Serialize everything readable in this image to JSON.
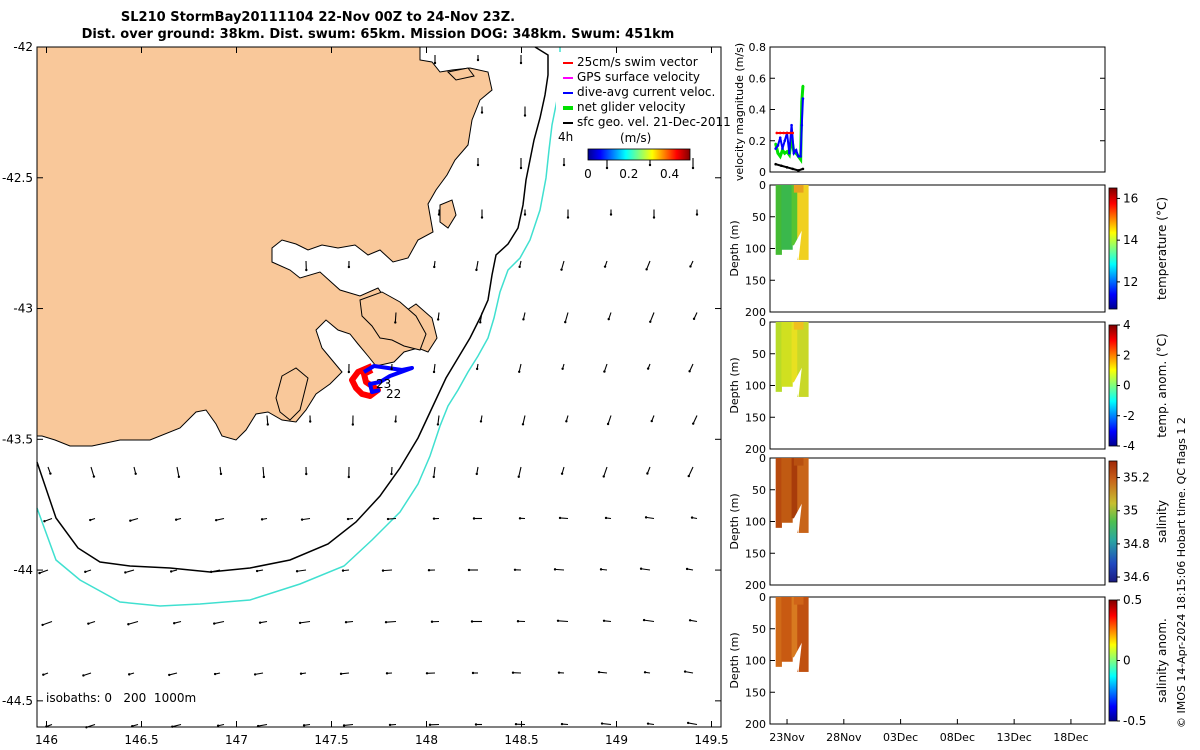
{
  "title_line1": "SL210 StormBay20111104 22-Nov 00Z to 24-Nov 23Z.",
  "title_line2": "Dist. over ground: 38km. Dist. swum: 65km. Mission DOG: 348km. Swum: 451km",
  "isobath_label": "isobaths: 0   200  1000m",
  "track_label_a": "23",
  "track_label_b": "22",
  "side_text": "© IMOS 14-Apr-2024 18:15:06 Hobart time. QC flags 1  2",
  "colors": {
    "land": "#f9c89a",
    "iso200": "#000000",
    "iso1000": "#40e0d0",
    "red": "#ff0000",
    "blue": "#0000ff",
    "magenta": "#ff00ff",
    "green": "#00e000"
  },
  "chart_data": [
    {
      "type": "map",
      "title": "SL210 StormBay20111104 22-Nov 00Z to 24-Nov 23Z.",
      "x_ticks": [
        "146",
        "146.5",
        "147",
        "147.5",
        "148",
        "148.5",
        "149",
        "149.5"
      ],
      "x_values": [
        146,
        146.5,
        147,
        147.5,
        148,
        148.5,
        149,
        149.5
      ],
      "xlim": [
        145.95,
        149.55
      ],
      "y_ticks": [
        "-42",
        "-42.5",
        "-43",
        "-43.5",
        "-44",
        "-44.5"
      ],
      "y_values": [
        -42,
        -42.5,
        -43,
        -43.5,
        -44,
        -44.5
      ],
      "ylim": [
        -44.6,
        -42
      ],
      "legend": [
        {
          "label": "25cm/s swim vector",
          "color": "#ff0000"
        },
        {
          "label": "GPS surface velocity",
          "color": "#ff00ff"
        },
        {
          "label": "dive-avg current veloc.",
          "color": "#0000ff"
        },
        {
          "label": "net glider velocity",
          "color": "#00e000"
        },
        {
          "label": "sfc geo. vel. 21-Dec-2011",
          "color": "#000000"
        }
      ],
      "legend_extra": "4h",
      "colorbar_label": "(m/s)",
      "colorbar_ticks": [
        "0",
        "0.2",
        "0.4"
      ],
      "colorbar_values": [
        0,
        0.2,
        0.4
      ],
      "colorbar_range": [
        0,
        0.5
      ]
    },
    {
      "type": "line",
      "ylabel": "velocity magnitude (m/s)",
      "y_ticks": [
        "0",
        "0.2",
        "0.4",
        "0.6",
        "0.8"
      ],
      "y_values": [
        0,
        0.2,
        0.4,
        0.6,
        0.8
      ],
      "ylim": [
        0,
        0.8
      ],
      "series": [
        {
          "name": "net glider velocity",
          "color": "#00e000",
          "x": [
            22.0,
            22.2,
            22.4,
            22.6,
            22.8,
            23.0,
            23.2,
            23.4,
            23.6,
            23.8,
            24.0,
            24.2,
            24.3,
            24.4
          ],
          "y": [
            0.18,
            0.12,
            0.1,
            0.14,
            0.12,
            0.13,
            0.11,
            0.22,
            0.13,
            0.12,
            0.1,
            0.08,
            0.45,
            0.55
          ]
        },
        {
          "name": "dive-avg current veloc.",
          "color": "#0000ff",
          "x": [
            22.0,
            22.2,
            22.4,
            22.6,
            22.8,
            23.0,
            23.2,
            23.4,
            23.6,
            23.8,
            24.0,
            24.2,
            24.3,
            24.4
          ],
          "y": [
            0.15,
            0.17,
            0.22,
            0.15,
            0.2,
            0.25,
            0.12,
            0.3,
            0.12,
            0.14,
            0.1,
            0.1,
            0.3,
            0.47
          ]
        },
        {
          "name": "25cm/s swim vector",
          "color": "#ff0000",
          "x": [
            22.1,
            22.4,
            22.7,
            23.0,
            23.3,
            23.5
          ],
          "y": [
            0.25,
            0.25,
            0.25,
            0.25,
            0.25,
            0.25
          ]
        },
        {
          "name": "sfc geo. vel.",
          "color": "#000000",
          "x": [
            22.0,
            22.5,
            23.0,
            23.5,
            24.0,
            24.4
          ],
          "y": [
            0.05,
            0.04,
            0.03,
            0.02,
            0.01,
            0.02
          ]
        }
      ]
    },
    {
      "type": "heatmap",
      "ylabel": "Depth (m)",
      "y_ticks": [
        "0",
        "50",
        "100",
        "150",
        "200"
      ],
      "y_values": [
        0,
        50,
        100,
        150,
        200
      ],
      "ylim": [
        200,
        0
      ],
      "cbar_label": "temperature (°C)",
      "cbar_ticks": [
        "12",
        "14",
        "16"
      ],
      "cbar_values": [
        12,
        14,
        16
      ],
      "cbar_range": [
        10.7,
        16.5
      ],
      "colors": [
        "#44bb33",
        "#3ab84c",
        "#55c433",
        "#f0d020",
        "#e8a020"
      ]
    },
    {
      "type": "heatmap",
      "ylabel": "Depth (m)",
      "y_ticks": [
        "0",
        "50",
        "100",
        "150",
        "200"
      ],
      "y_values": [
        0,
        50,
        100,
        150,
        200
      ],
      "ylim": [
        200,
        0
      ],
      "cbar_label": "temp. anom. (°C)",
      "cbar_ticks": [
        "-4",
        "-2",
        "0",
        "2",
        "4"
      ],
      "cbar_values": [
        -4,
        -2,
        0,
        2,
        4
      ],
      "cbar_range": [
        -4,
        4
      ],
      "colors": [
        "#b8dc28",
        "#d0e020",
        "#e8e020",
        "#c8d828",
        "#f0c020"
      ]
    },
    {
      "type": "heatmap",
      "ylabel": "Depth (m)",
      "y_ticks": [
        "0",
        "50",
        "100",
        "150",
        "200"
      ],
      "y_values": [
        0,
        50,
        100,
        150,
        200
      ],
      "ylim": [
        200,
        0
      ],
      "cbar_label": "salinity",
      "cbar_ticks": [
        "34.6",
        "34.8",
        "35",
        "35.2"
      ],
      "cbar_values": [
        34.6,
        34.8,
        35,
        35.2
      ],
      "cbar_range": [
        34.57,
        35.3
      ],
      "colors": [
        "#b84a0e",
        "#c05a12",
        "#a83c0a",
        "#c86418",
        "#b85010"
      ]
    },
    {
      "type": "heatmap",
      "ylabel": "Depth (m)",
      "y_ticks": [
        "0",
        "50",
        "100",
        "150",
        "200"
      ],
      "y_values": [
        0,
        50,
        100,
        150,
        200
      ],
      "ylim": [
        200,
        0
      ],
      "cbar_label": "salinity anom.",
      "cbar_ticks": [
        "-0.5",
        "0",
        "0.5"
      ],
      "cbar_values": [
        -0.5,
        0,
        0.5
      ],
      "cbar_range": [
        -0.5,
        0.5
      ],
      "colors": [
        "#d06a18",
        "#c85a12",
        "#d87a20",
        "#c05010",
        "#d06418"
      ]
    },
    {
      "type": "time_axis",
      "x_ticks": [
        "23Nov",
        "28Nov",
        "03Dec",
        "08Dec",
        "13Dec",
        "18Dec"
      ],
      "x_values": [
        23,
        28,
        33,
        38,
        43,
        48
      ],
      "xlim": [
        21.5,
        51
      ]
    }
  ]
}
